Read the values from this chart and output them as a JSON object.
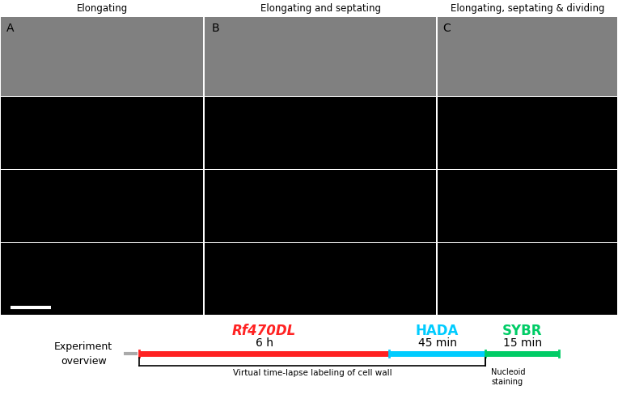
{
  "title_cols": [
    "Elongating",
    "Elongating and septating",
    "Elongating, septating & dividing"
  ],
  "panel_labels": [
    "A",
    "B",
    "C"
  ],
  "experiment_label": "Experiment\noverview",
  "label_rf470dl": "Rf470DL",
  "label_hada": "HADA",
  "label_sybr": "SYBR",
  "duration_rf470dl": "6 h",
  "duration_hada": "45 min",
  "duration_sybr": "15 min",
  "color_rf470dl": "#ff2222",
  "color_hada": "#00ccff",
  "color_sybr": "#00cc66",
  "color_gray_line": "#aaaaaa",
  "annotation_vt": "Virtual time-lapse labeling of cell wall",
  "annotation_ns": "Nucleoid\nstaining",
  "fig_width": 7.64,
  "fig_height": 5.03
}
